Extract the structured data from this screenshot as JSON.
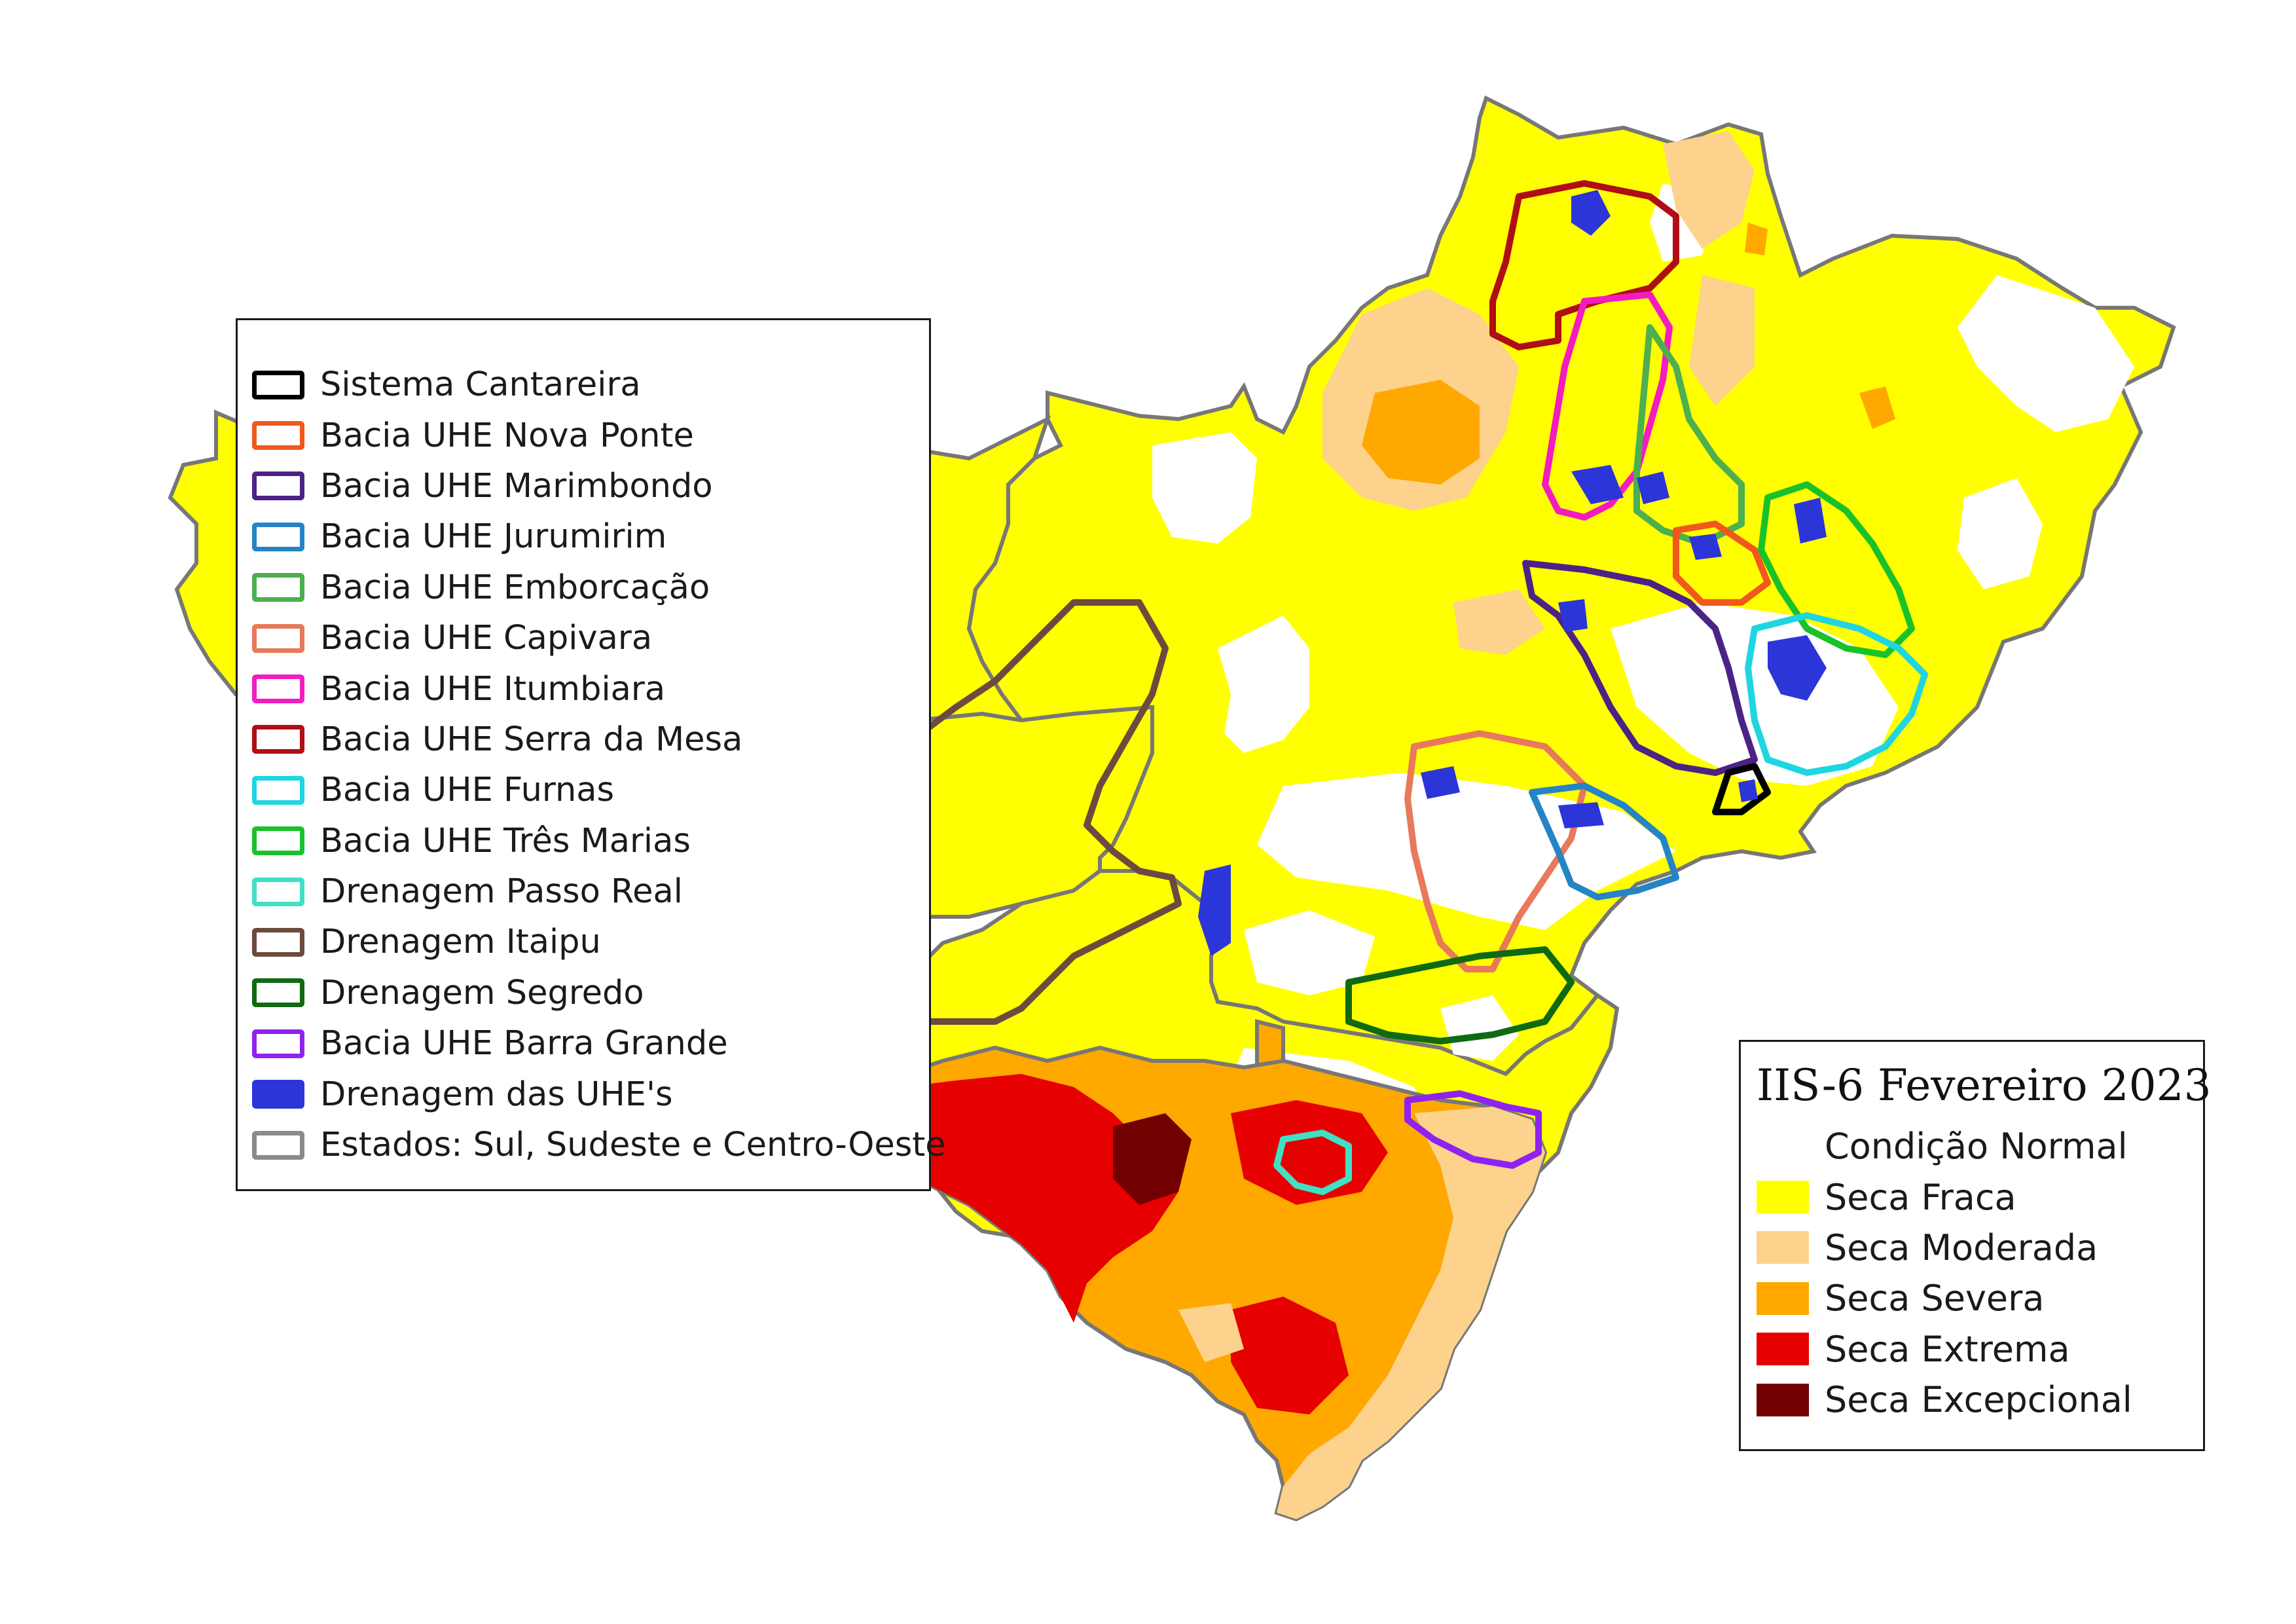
{
  "layers_legend": {
    "items": [
      {
        "label": "Sistema Cantareira",
        "color": "#000000",
        "style": "outline"
      },
      {
        "label": "Bacia UHE Nova Ponte",
        "color": "#f0581e",
        "style": "outline"
      },
      {
        "label": "Bacia UHE Marimbondo",
        "color": "#4b2386",
        "style": "outline"
      },
      {
        "label": "Bacia UHE Jurumirim",
        "color": "#2584c6",
        "style": "outline"
      },
      {
        "label": "Bacia UHE Emborcação",
        "color": "#4caf50",
        "style": "outline"
      },
      {
        "label": "Bacia UHE Capivara",
        "color": "#e8795a",
        "style": "outline"
      },
      {
        "label": "Bacia UHE Itumbiara",
        "color": "#f21cc0",
        "style": "outline"
      },
      {
        "label": "Bacia UHE Serra da Mesa",
        "color": "#b00d14",
        "style": "outline"
      },
      {
        "label": "Bacia UHE Furnas",
        "color": "#1fd6e0",
        "style": "outline"
      },
      {
        "label": "Bacia UHE Três Marias",
        "color": "#19c22a",
        "style": "outline"
      },
      {
        "label": "Drenagem Passo Real",
        "color": "#40e0c4",
        "style": "outline"
      },
      {
        "label": "Drenagem Itaipu",
        "color": "#6b4b3e",
        "style": "outline"
      },
      {
        "label": "Drenagem Segredo",
        "color": "#0f6a12",
        "style": "outline"
      },
      {
        "label": "Bacia UHE Barra Grande",
        "color": "#8e22f0",
        "style": "outline"
      },
      {
        "label": "Drenagem das UHE's",
        "color": "#2c35d8",
        "style": "fill"
      },
      {
        "label": "Estados: Sul, Sudeste e Centro-Oeste",
        "color": "#8a8a8a",
        "style": "outline"
      }
    ]
  },
  "classes_legend": {
    "title": "IIS-6 Fevereiro 2023",
    "items": [
      {
        "label": "Condição Normal",
        "color": "#ffffff"
      },
      {
        "label": "Seca Fraca",
        "color": "#ffff00"
      },
      {
        "label": "Seca Moderada",
        "color": "#fcd28c"
      },
      {
        "label": "Seca Severa",
        "color": "#ffa800"
      },
      {
        "label": "Seca Extrema",
        "color": "#e60000"
      },
      {
        "label": "Seca Excepcional",
        "color": "#730000"
      }
    ]
  }
}
